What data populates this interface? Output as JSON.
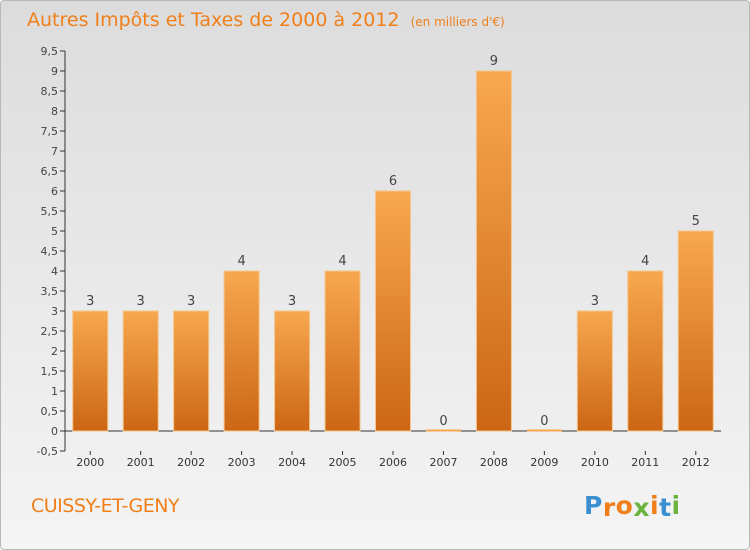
{
  "header": {
    "title": "Autres Impôts et Taxes de 2000 à 2012",
    "subtitle": "(en milliers d'€)"
  },
  "footer": {
    "commune": "CUISSY-ET-GENY",
    "logo_letters": [
      "P",
      "r",
      "o",
      "x",
      "i",
      "t",
      "i"
    ],
    "logo_colors": [
      "#3a8fd1",
      "#f07f1a",
      "#f07f1a",
      "#6ab43e",
      "#f07f1a",
      "#3a8fd1",
      "#6ab43e"
    ]
  },
  "colors": {
    "bar_top": "#f7a84f",
    "bar_bottom": "#cc6614",
    "bar_edge": "#f5c48a",
    "text": "#f07f1a",
    "axis": "#333333"
  },
  "chart_data": {
    "type": "bar",
    "title": "Autres Impôts et Taxes de 2000 à 2012",
    "subtitle": "(en milliers d'€)",
    "xlabel": "",
    "ylabel": "",
    "categories": [
      "2000",
      "2001",
      "2002",
      "2003",
      "2004",
      "2005",
      "2006",
      "2007",
      "2008",
      "2009",
      "2010",
      "2011",
      "2012"
    ],
    "values": [
      3,
      3,
      3,
      4,
      3,
      4,
      6,
      0,
      9,
      0,
      3,
      4,
      5
    ],
    "value_labels": [
      "3",
      "3",
      "3",
      "4",
      "3",
      "4",
      "6",
      "0",
      "9",
      "0",
      "3",
      "4",
      "5"
    ],
    "ylim": [
      -0.5,
      9.5
    ],
    "yticks": [
      -0.5,
      0,
      0.5,
      1,
      1.5,
      2,
      2.5,
      3,
      3.5,
      4,
      4.5,
      5,
      5.5,
      6,
      6.5,
      7,
      7.5,
      8,
      8.5,
      9,
      9.5
    ],
    "ytick_labels": [
      "-0,5",
      "0",
      "0,5",
      "1",
      "1,5",
      "2",
      "2,5",
      "3",
      "3,5",
      "4",
      "4,5",
      "5",
      "5,5",
      "6",
      "6,5",
      "7",
      "7,5",
      "8",
      "8,5",
      "9",
      "9,5"
    ],
    "grid": false,
    "legend": "none"
  }
}
